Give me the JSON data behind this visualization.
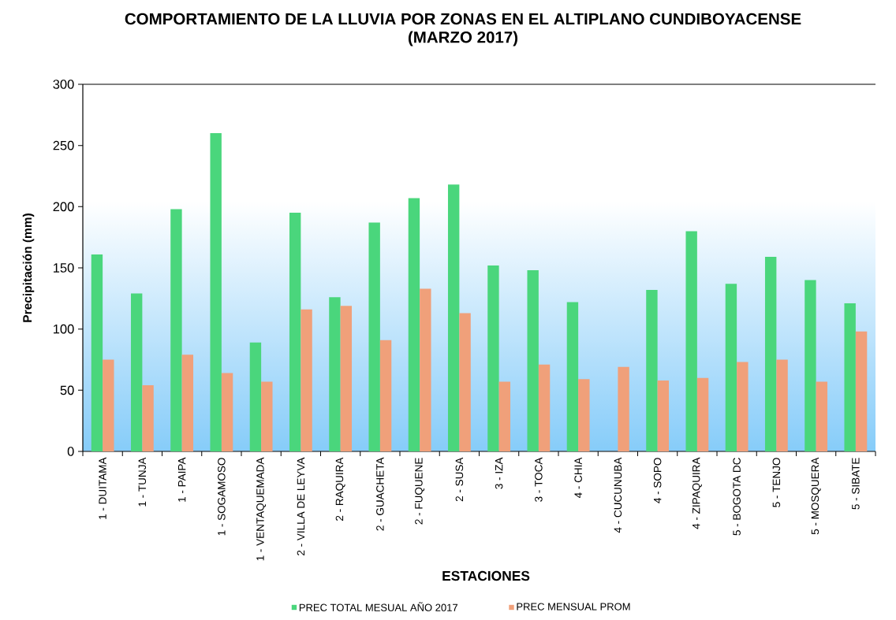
{
  "chart_data": {
    "type": "bar",
    "title": "COMPORTAMIENTO DE LA LLUVIA POR ZONAS EN EL ALTIPLANO CUNDIBOYACENSE",
    "subtitle": "(MARZO 2017)",
    "xlabel": "ESTACIONES",
    "ylabel": "Precipitación (mm)",
    "categories": [
      "1 - DUITAMA",
      "1 - TUNJA",
      "1 - PAIPA",
      "1 - SOGAMOSO",
      "1 - VENTAQUEMADA",
      "2 - VILLA DE LEYVA",
      "2 - RAQUIRA",
      "2 - GUACHETA",
      "2 - FUQUENE",
      "2 - SUSA",
      "3 - IZA",
      "3 - TOCA",
      "4 - CHIA",
      "4 - CUCUNUBA",
      "4 - SOPO",
      "4 - ZIPAQUIRA",
      "5 - BOGOTA DC",
      "5 - TENJO",
      "5 - MOSQUERA",
      "5 - SIBATE"
    ],
    "series": [
      {
        "name": "PREC TOTAL MESUAL AÑO 2017",
        "color": "#4ad67c",
        "values": [
          161,
          129,
          198,
          260,
          89,
          195,
          126,
          187,
          207,
          218,
          152,
          148,
          122,
          null,
          132,
          180,
          137,
          159,
          140,
          121
        ]
      },
      {
        "name": "PREC MENSUAL PROM",
        "color": "#f0a07a",
        "values": [
          75,
          54,
          79,
          64,
          57,
          116,
          119,
          91,
          133,
          113,
          57,
          71,
          59,
          69,
          58,
          60,
          73,
          75,
          57,
          98
        ]
      }
    ],
    "ylim": [
      0,
      300
    ],
    "yticks": [
      0,
      50,
      100,
      150,
      200,
      250,
      300
    ],
    "legend": "bottom"
  }
}
